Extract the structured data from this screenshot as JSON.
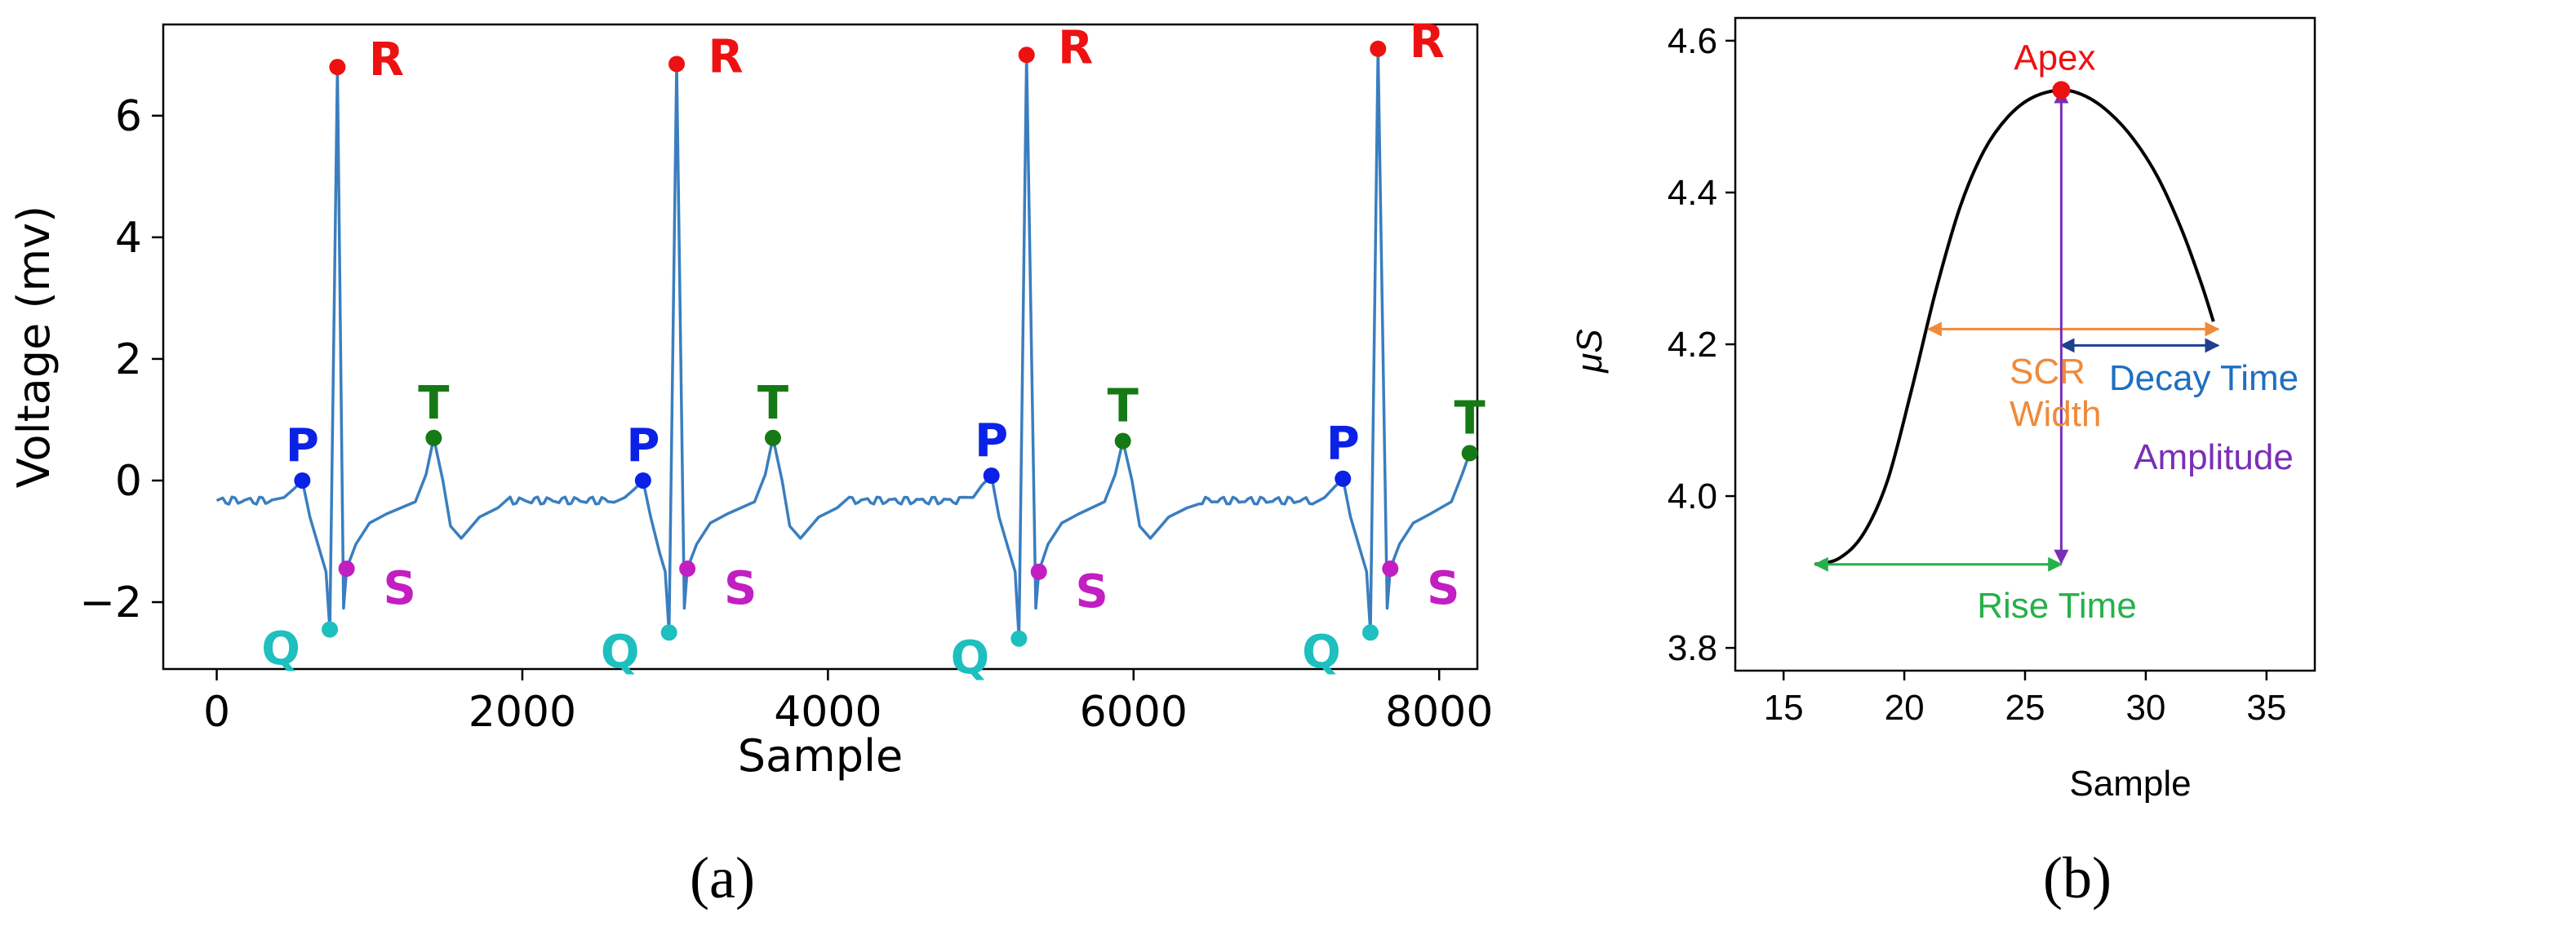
{
  "chart_data": [
    {
      "type": "line",
      "panel_label": "(a)",
      "xlabel": "Sample",
      "ylabel": "Voltage (mv)",
      "xlim": [
        -350,
        8250
      ],
      "ylim": [
        -3.1,
        7.5
      ],
      "xticks": [
        0,
        2000,
        4000,
        6000,
        8000
      ],
      "xtick_labels": [
        "0",
        "2000",
        "4000",
        "6000",
        "8000"
      ],
      "yticks": [
        -2,
        0,
        2,
        4,
        6
      ],
      "ytick_labels": [
        "−2",
        "0",
        "2",
        "4",
        "6"
      ],
      "grid": false,
      "series_color": "#3a7ebf",
      "beats": [
        {
          "P": [
            560,
            0.0
          ],
          "Q": [
            740,
            -2.45
          ],
          "R": [
            790,
            6.8
          ],
          "S": [
            850,
            -1.45
          ],
          "T": [
            1420,
            0.7
          ]
        },
        {
          "P": [
            2790,
            0.0
          ],
          "Q": [
            2960,
            -2.5
          ],
          "R": [
            3010,
            6.85
          ],
          "S": [
            3080,
            -1.45
          ],
          "T": [
            3640,
            0.7
          ]
        },
        {
          "P": [
            5070,
            0.08
          ],
          "Q": [
            5250,
            -2.6
          ],
          "R": [
            5300,
            7.0
          ],
          "S": [
            5380,
            -1.5
          ],
          "T": [
            5930,
            0.65
          ]
        },
        {
          "P": [
            7370,
            0.03
          ],
          "Q": [
            7550,
            -2.5
          ],
          "R": [
            7600,
            7.1
          ],
          "S": [
            7680,
            -1.45
          ],
          "T": [
            8200,
            0.45
          ]
        }
      ],
      "wave_labels": {
        "P": {
          "text": "P",
          "color": "#0b22e6"
        },
        "Q": {
          "text": "Q",
          "color": "#1dbfbf"
        },
        "R": {
          "text": "R",
          "color": "#ee1111"
        },
        "S": {
          "text": "S",
          "color": "#c21ec2"
        },
        "T": {
          "text": "T",
          "color": "#157a15"
        }
      }
    },
    {
      "type": "line",
      "panel_label": "(b)",
      "xlabel": "Sample",
      "ylabel": "μS",
      "xlim": [
        13,
        37
      ],
      "ylim": [
        3.77,
        4.63
      ],
      "xticks": [
        15,
        20,
        25,
        30,
        35
      ],
      "xtick_labels": [
        "15",
        "20",
        "25",
        "30",
        "35"
      ],
      "yticks": [
        3.8,
        4.0,
        4.2,
        4.4,
        4.6
      ],
      "ytick_labels": [
        "3.8",
        "4.0",
        "4.2",
        "4.4",
        "4.6"
      ],
      "grid": false,
      "curve": [
        [
          16.3,
          3.91
        ],
        [
          17.3,
          3.918
        ],
        [
          18.3,
          3.95
        ],
        [
          19.3,
          4.02
        ],
        [
          20.3,
          4.14
        ],
        [
          21.3,
          4.27
        ],
        [
          22.3,
          4.38
        ],
        [
          23.3,
          4.455
        ],
        [
          24.3,
          4.5
        ],
        [
          25.3,
          4.525
        ],
        [
          26.5,
          4.535
        ],
        [
          27.5,
          4.527
        ],
        [
          28.5,
          4.505
        ],
        [
          29.5,
          4.47
        ],
        [
          30.5,
          4.42
        ],
        [
          31.5,
          4.35
        ],
        [
          32.3,
          4.28
        ],
        [
          32.8,
          4.23
        ]
      ],
      "apex": {
        "x": 26.5,
        "y": 4.535,
        "label": "Apex",
        "color": "#ee1111"
      },
      "annotations": [
        {
          "name": "scr-width",
          "text": [
            "SCR",
            "Width"
          ],
          "color": "#f08a3a",
          "from": [
            21.0,
            4.22
          ],
          "to": [
            33.0,
            4.22
          ]
        },
        {
          "name": "decay-time",
          "text": [
            "Decay Time"
          ],
          "color": "#1f6fbf",
          "from": [
            26.5,
            4.205
          ],
          "to": [
            33.0,
            4.205
          ]
        },
        {
          "name": "amplitude",
          "text": [
            "Amplitude"
          ],
          "color": "#7a2fb5",
          "from": [
            26.5,
            4.535
          ],
          "to": [
            26.5,
            3.912
          ]
        },
        {
          "name": "rise-time",
          "text": [
            "Rise Time"
          ],
          "color": "#27b04a",
          "from": [
            16.3,
            3.91
          ],
          "to": [
            26.5,
            3.91
          ]
        }
      ]
    }
  ]
}
